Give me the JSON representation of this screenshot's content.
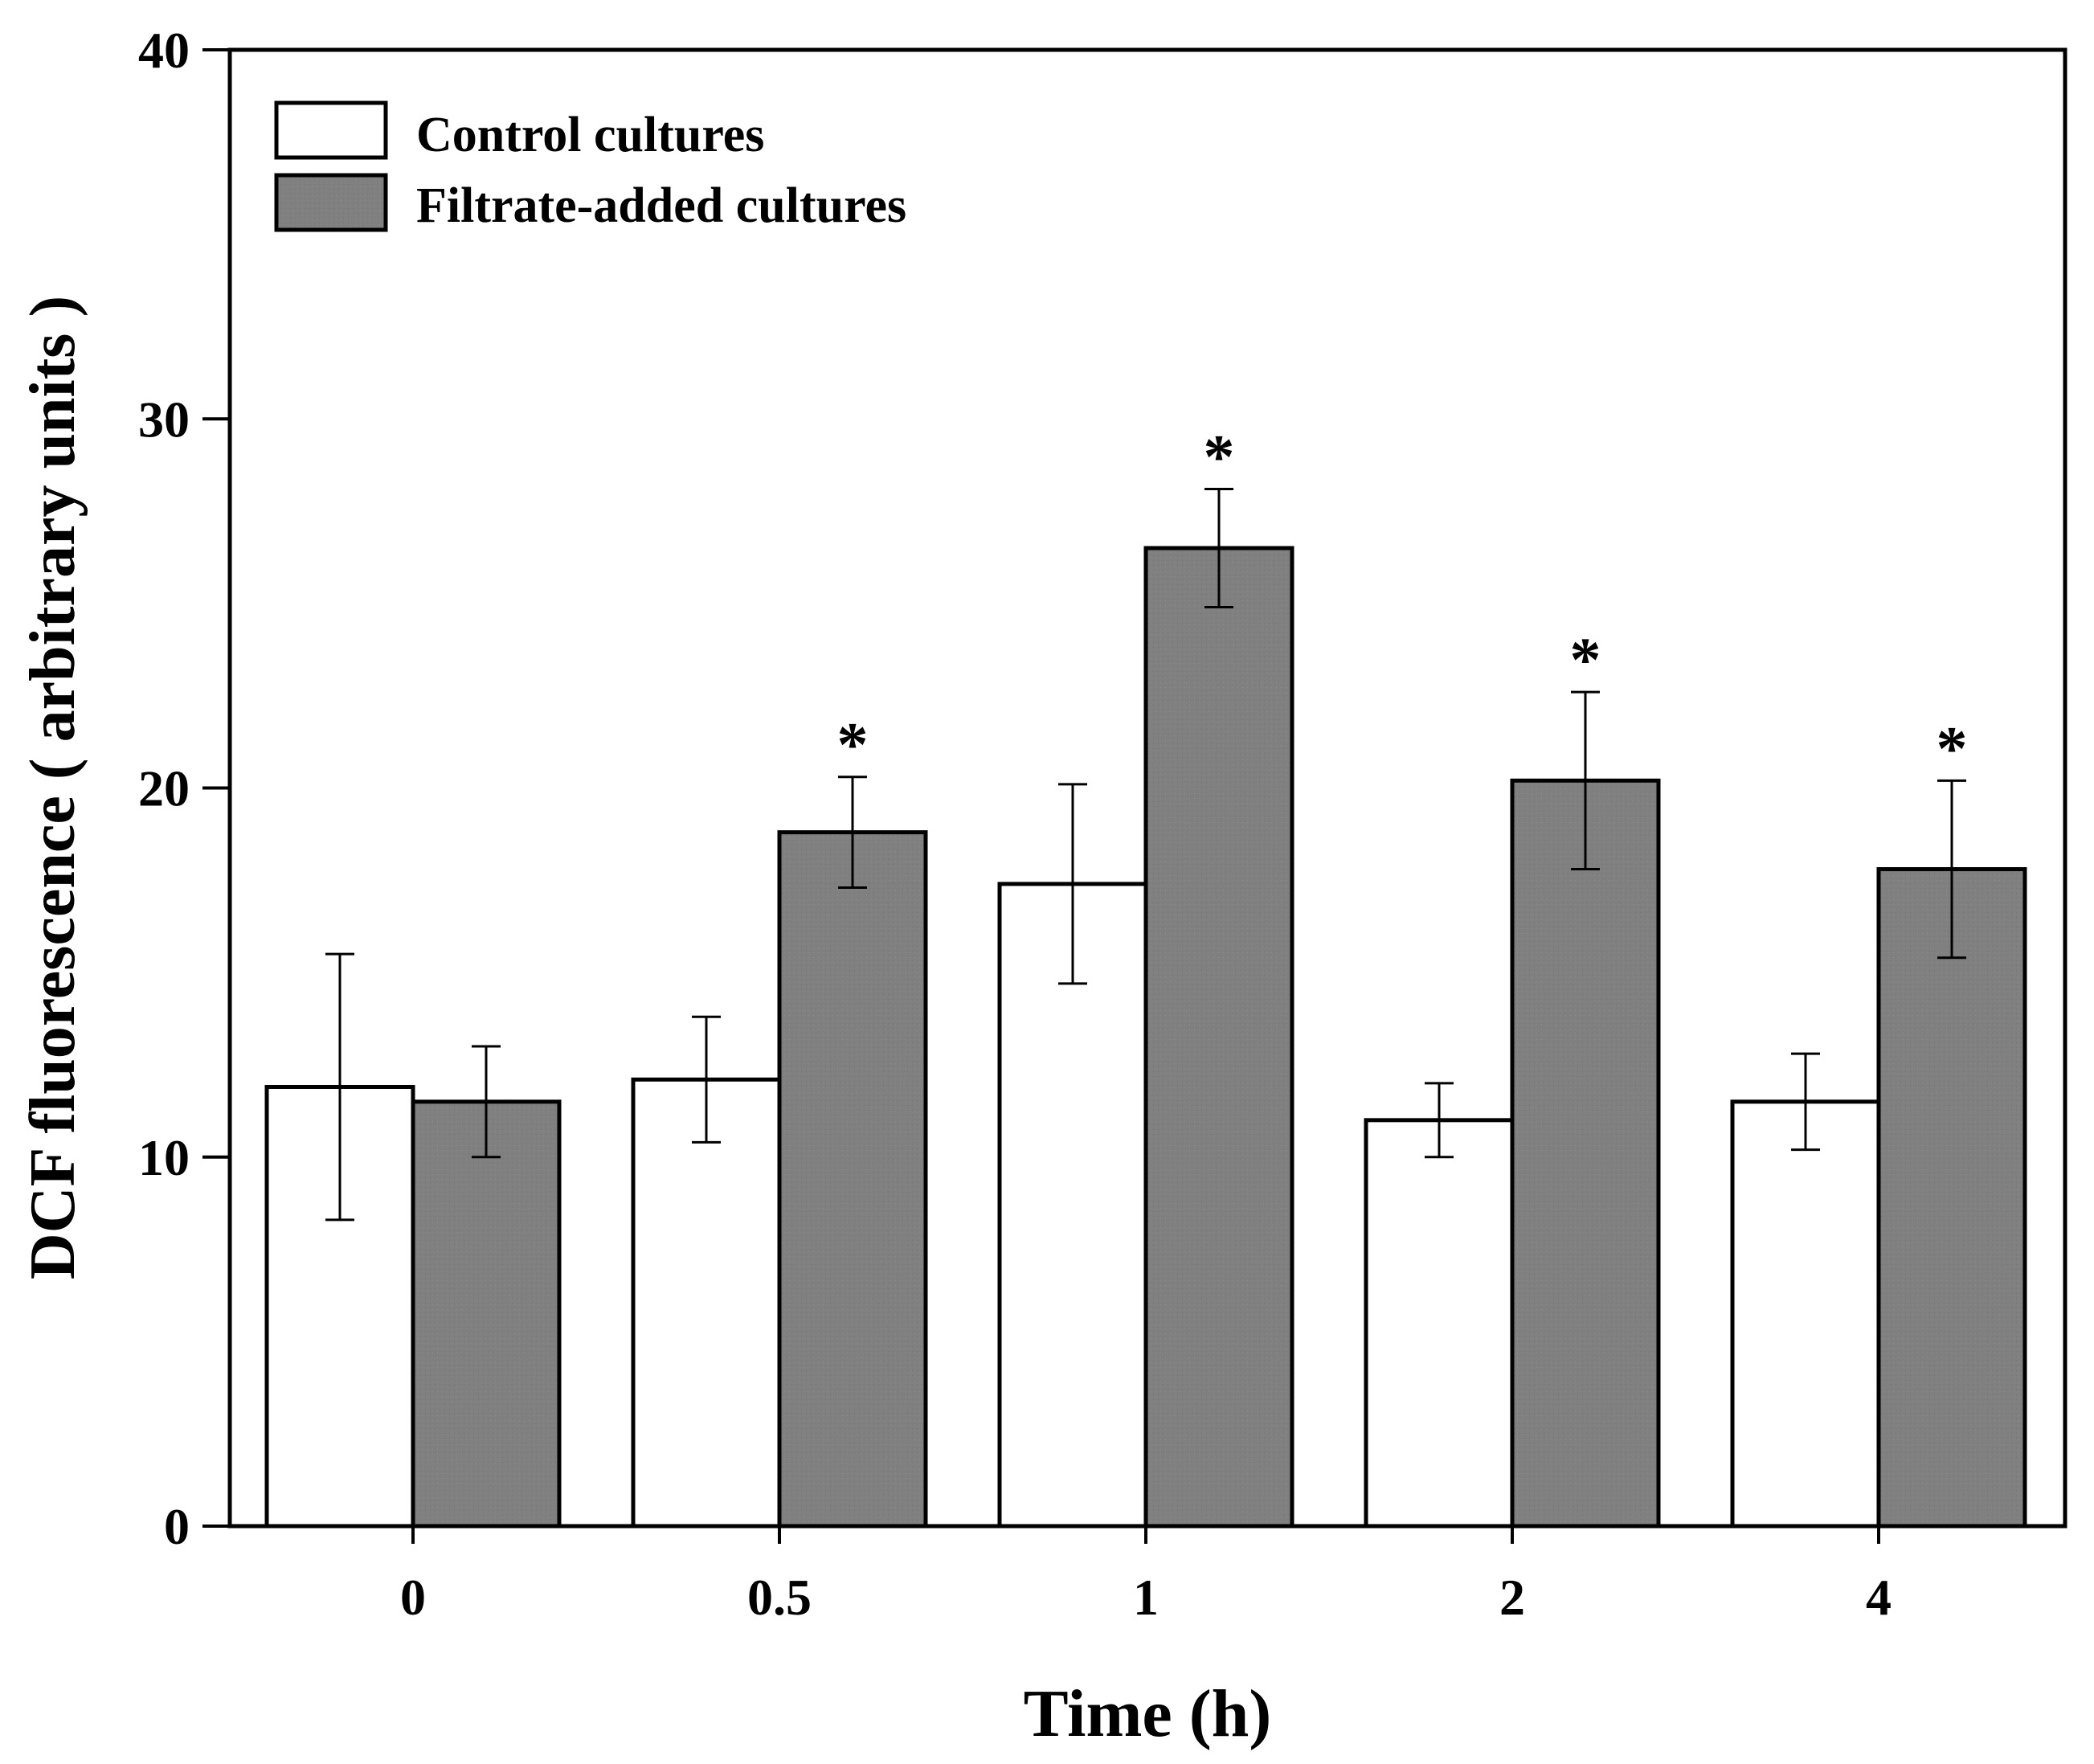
{
  "chart_data": {
    "type": "bar",
    "title": "",
    "xlabel": "Time (h)",
    "ylabel": "DCF fluorescence ( arbitrary units )",
    "categories": [
      "0",
      "0.5",
      "1",
      "2",
      "4"
    ],
    "ylim": [
      0,
      40
    ],
    "yticks": [
      0,
      10,
      20,
      30,
      40
    ],
    "grid": false,
    "legend_position": "top-left",
    "series": [
      {
        "name": "Control cultures",
        "color": "#ffffff",
        "values": [
          11.9,
          12.1,
          17.4,
          11.0,
          11.5
        ],
        "errors": [
          3.6,
          1.7,
          2.7,
          1.0,
          1.3
        ],
        "significant": [
          false,
          false,
          false,
          false,
          false
        ]
      },
      {
        "name": "Filtrate-added cultures",
        "color": "#808080",
        "values": [
          11.5,
          18.8,
          26.5,
          20.2,
          17.8
        ],
        "errors": [
          1.5,
          1.5,
          1.6,
          2.4,
          2.4
        ],
        "significant": [
          false,
          true,
          true,
          true,
          true
        ]
      }
    ],
    "significance_marker": "*"
  }
}
